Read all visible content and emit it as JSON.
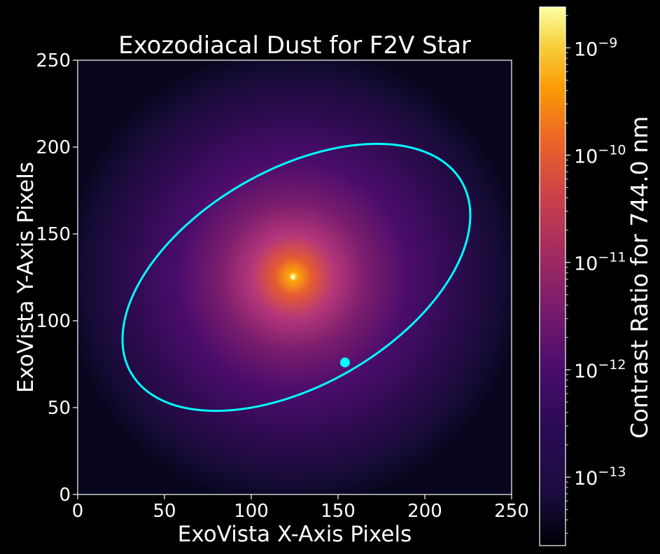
{
  "chart_data": {
    "type": "heatmap",
    "title": "Exozodiacal Dust for F2V Star",
    "xlabel": "ExoVista X-Axis Pixels",
    "ylabel": "ExoVista Y-Axis Pixels",
    "xlim": [
      0,
      250
    ],
    "ylim": [
      0,
      250
    ],
    "xticks": [
      0,
      50,
      100,
      150,
      200,
      250
    ],
    "yticks": [
      0,
      50,
      100,
      150,
      200,
      250
    ],
    "colormap": "inferno",
    "star_position": {
      "x": 124,
      "y": 125
    },
    "orbit_ellipse": {
      "center": {
        "x": 126,
        "y": 125
      },
      "semi_major": 110,
      "semi_minor": 62,
      "rotation_deg": 30,
      "color": "#00ffff"
    },
    "planet_marker": {
      "x": 154,
      "y": 76,
      "color": "#00ffff"
    },
    "colorbar": {
      "label": "Contrast Ratio for 744.0 nm",
      "scale": "log",
      "range": [
        2.3e-14,
        2.4e-09
      ],
      "ticks": [
        {
          "value": 1e-13,
          "base": "10",
          "exp": "−13"
        },
        {
          "value": 1e-12,
          "base": "10",
          "exp": "−12"
        },
        {
          "value": 1e-11,
          "base": "10",
          "exp": "−11"
        },
        {
          "value": 1e-10,
          "base": "10",
          "exp": "−10"
        },
        {
          "value": 1e-09,
          "base": "10",
          "exp": "−9"
        }
      ]
    }
  }
}
